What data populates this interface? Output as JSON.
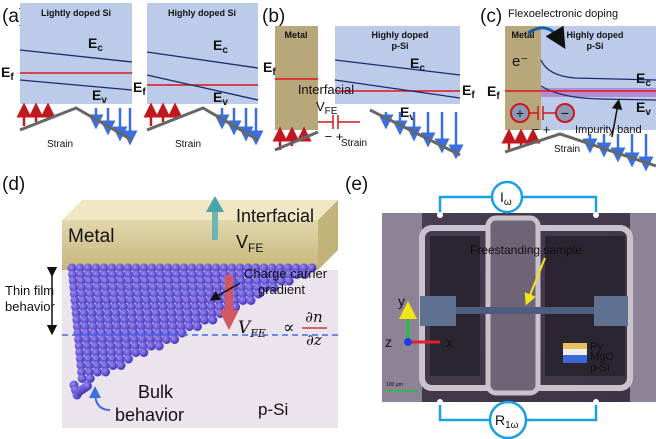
{
  "panel_a": {
    "label": "(a)",
    "box1_title": "Lightly doped Si",
    "box2_title": "Highly doped Si",
    "ec1": {
      "base": "E",
      "sub": "c"
    },
    "ev1": {
      "base": "E",
      "sub": "v"
    },
    "ef1": {
      "base": "E",
      "sub": "f"
    },
    "ec2": {
      "base": "E",
      "sub": "c"
    },
    "ev2": {
      "base": "E",
      "sub": "v"
    },
    "ef2": {
      "base": "E",
      "sub": "f"
    },
    "strain1": "Strain",
    "strain2": "Strain"
  },
  "panel_b": {
    "label": "(b)",
    "metal": "Metal",
    "box_title_1": "Highly doped",
    "box_title_2": "p-Si",
    "ef_left": {
      "base": "E",
      "sub": "f"
    },
    "ef_right": {
      "base": "E",
      "sub": "f"
    },
    "ec": {
      "base": "E",
      "sub": "c"
    },
    "ev": {
      "base": "E",
      "sub": "v"
    },
    "interfacial": "Interfacial",
    "vfe": {
      "base": "V",
      "sub": "FE"
    },
    "polarity": "− +",
    "strain": "Strain"
  },
  "panel_c": {
    "label": "(c)",
    "title": "Flexoelectronic doping",
    "metal": "Metal",
    "box_title_1": "Highly doped",
    "box_title_2": "p-Si",
    "electron": "e⁻",
    "plus": "+",
    "minus": "−",
    "polarity": "− +",
    "ef": {
      "base": "E",
      "sub": "f"
    },
    "ec": {
      "base": "E",
      "sub": "c"
    },
    "ev": {
      "base": "E",
      "sub": "v"
    },
    "impurity": "Impurity band",
    "strain": "Strain"
  },
  "panel_d": {
    "label": "(d)",
    "metal": "Metal",
    "interfacial": "Interfacial",
    "vfe": {
      "base": "V",
      "sub": "FE"
    },
    "thin_film_1": "Thin film",
    "thin_film_2": "behavior",
    "gradient_1": "Charge carrier",
    "gradient_2": "gradient",
    "formula": {
      "v": "V",
      "sub": "FE",
      "prop": "∝",
      "num": "∂n",
      "den": "∂z"
    },
    "bulk_1": "Bulk",
    "bulk_2": "behavior",
    "psi": "p-Si"
  },
  "panel_e": {
    "label": "(e)",
    "current": {
      "base": "I",
      "sub": "ω"
    },
    "resistance": {
      "base": "R",
      "sub": "1ω"
    },
    "sample": "Freestanding sample",
    "axis_y": "y",
    "axis_x": "x",
    "axis_z": "z",
    "py": "Py",
    "mgo": "MgO",
    "psi": "p-Si",
    "scale": "100 μm"
  }
}
